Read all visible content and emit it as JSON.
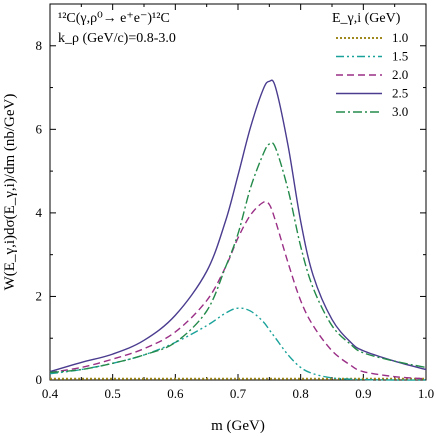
{
  "chart_data": {
    "type": "line",
    "annotation": {
      "reaction": "¹²C(γ,ρ⁰→ e⁺e⁻)¹²C",
      "k_range": "k_ρ (GeV/c)=0.8-3.0"
    },
    "xlabel": "m (GeV)",
    "ylabel": "W(E_γ,i)dσ(E_γ,i)/dm (nb/GeV)",
    "legend_title": "E_γ,i (GeV)",
    "legend_position": "top-right",
    "xlim": [
      0.4,
      1.0
    ],
    "ylim": [
      0,
      9
    ],
    "x_ticks": [
      "0.4",
      "0.5",
      "0.6",
      "0.7",
      "0.8",
      "0.9",
      "1.0"
    ],
    "y_ticks": [
      "0",
      "2",
      "4",
      "6",
      "8"
    ],
    "x": [
      0.4,
      0.45,
      0.5,
      0.55,
      0.6,
      0.65,
      0.68,
      0.7,
      0.72,
      0.74,
      0.75,
      0.76,
      0.78,
      0.8,
      0.82,
      0.85,
      0.88,
      0.9,
      0.95,
      1.0
    ],
    "series": [
      {
        "name": "1.0",
        "color": "#a08a1e",
        "dash": "2,2",
        "values": [
          0.03,
          0.03,
          0.03,
          0.03,
          0.03,
          0.03,
          0.03,
          0.03,
          0.03,
          0.03,
          0.03,
          0.03,
          0.03,
          0.03,
          0.03,
          0.03,
          0.03,
          0.03,
          0.03,
          0.03
        ]
      },
      {
        "name": "1.5",
        "color": "#1aa29a",
        "dash": "8,3,2,3,2,3",
        "values": [
          0.15,
          0.25,
          0.4,
          0.6,
          0.9,
          1.3,
          1.6,
          1.72,
          1.65,
          1.4,
          1.2,
          1.0,
          0.6,
          0.3,
          0.15,
          0.05,
          0.02,
          0.01,
          0.0,
          0.0
        ]
      },
      {
        "name": "2.0",
        "color": "#9a2f86",
        "dash": "7,4",
        "values": [
          0.18,
          0.3,
          0.5,
          0.75,
          1.15,
          1.9,
          2.7,
          3.4,
          3.95,
          4.25,
          4.2,
          3.8,
          2.8,
          1.9,
          1.3,
          0.7,
          0.35,
          0.2,
          0.08,
          0.03
        ]
      },
      {
        "name": "2.5",
        "color": "#4b3c8f",
        "dash": "",
        "values": [
          0.2,
          0.42,
          0.62,
          0.95,
          1.55,
          2.6,
          3.8,
          4.9,
          6.05,
          6.95,
          7.15,
          7.0,
          5.6,
          3.8,
          2.5,
          1.45,
          0.9,
          0.7,
          0.45,
          0.25
        ]
      },
      {
        "name": "3.0",
        "color": "#238a4a",
        "dash": "9,3,2,3",
        "values": [
          0.18,
          0.25,
          0.4,
          0.6,
          0.9,
          1.65,
          2.7,
          3.5,
          4.6,
          5.4,
          5.65,
          5.55,
          4.55,
          3.2,
          2.2,
          1.3,
          0.85,
          0.65,
          0.45,
          0.3
        ]
      }
    ]
  }
}
